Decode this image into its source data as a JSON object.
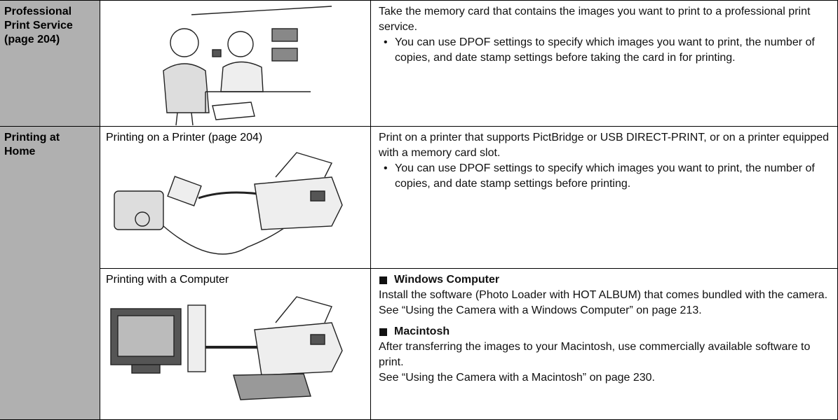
{
  "table": {
    "rows": [
      {
        "category": "Professional Print Service (page 204)",
        "description": "Take the memory card that contains the images you want to print to a professional print service.",
        "bullet": "You can use DPOF settings to specify which images you want to print, the number of copies, and date stamp settings before taking the card in for printing."
      },
      {
        "category": "Printing at Home",
        "methods": [
          {
            "label": "Printing on a Printer (page 204)",
            "description": "Print on a printer that supports PictBridge or USB DIRECT-PRINT, or on a printer equipped with a memory card slot.",
            "bullet": "You can use DPOF settings to specify which images you want to print, the number of copies, and date stamp settings before printing."
          },
          {
            "label": "Printing with a Computer",
            "sections": [
              {
                "heading": "Windows Computer",
                "paragraphs": [
                  "Install the software (Photo Loader with HOT ALBUM) that comes bundled with the camera.",
                  "See “Using the Camera with a Windows Computer” on page 213."
                ]
              },
              {
                "heading": "Macintosh",
                "paragraphs": [
                  "After transferring the images to your Macintosh, use commercially available software to print.",
                  "See “Using the Camera with a Macintosh” on page 230."
                ]
              }
            ]
          }
        ]
      }
    ]
  }
}
